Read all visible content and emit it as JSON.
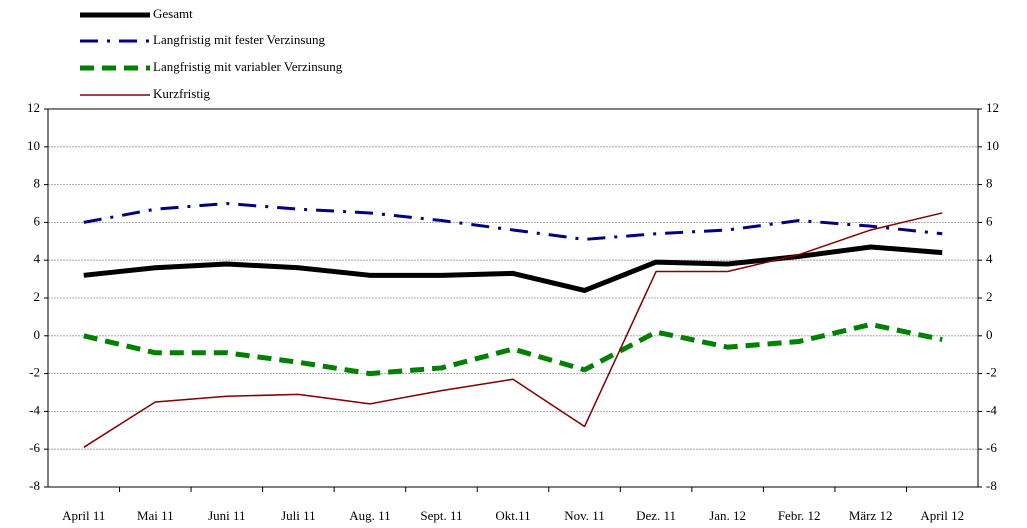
{
  "chart_data": {
    "type": "line",
    "categories": [
      "April 11",
      "Mai 11",
      "Juni 11",
      "Juli 11",
      "Aug. 11",
      "Sept. 11",
      "Okt.11",
      "Nov. 11",
      "Dez. 11",
      "Jan. 12",
      "Febr. 12",
      "März 12",
      "April 12"
    ],
    "series": [
      {
        "name": "Gesamt",
        "color": "#000000",
        "values": [
          3.2,
          3.6,
          3.8,
          3.6,
          3.2,
          3.2,
          3.3,
          2.4,
          3.9,
          3.8,
          4.2,
          4.7,
          4.4
        ]
      },
      {
        "name": "Langfristig mit fester Verzinsung",
        "color": "#000080",
        "values": [
          6.0,
          6.7,
          7.0,
          6.7,
          6.5,
          6.1,
          5.6,
          5.1,
          5.4,
          5.6,
          6.1,
          5.8,
          5.4
        ]
      },
      {
        "name": "Langfristig mit variabler Verzinsung",
        "color": "#008000",
        "values": [
          0.0,
          -0.9,
          -0.9,
          -1.4,
          -2.0,
          -1.7,
          -0.7,
          -1.8,
          0.2,
          -0.6,
          -0.3,
          0.6,
          -0.2
        ]
      },
      {
        "name": "Kurzfristig",
        "color": "#800000",
        "values": [
          -5.9,
          -3.5,
          -3.2,
          -3.1,
          -3.6,
          -2.9,
          -2.3,
          -4.8,
          3.4,
          3.4,
          4.3,
          5.6,
          6.5
        ]
      }
    ],
    "ylim": [
      -8,
      12
    ],
    "yticks": [
      -8,
      -6,
      -4,
      -2,
      0,
      2,
      4,
      6,
      8,
      10,
      12
    ],
    "y2lim": [
      -8,
      12
    ],
    "y2ticks": [
      -8,
      -6,
      -4,
      -2,
      0,
      2,
      4,
      6,
      8,
      10,
      12
    ],
    "grid": true
  }
}
